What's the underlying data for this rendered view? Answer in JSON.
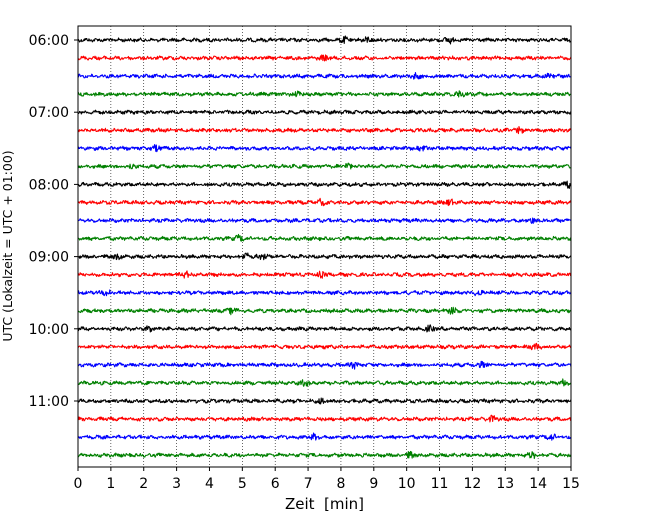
{
  "chart_data": {
    "type": "line",
    "subtype": "helicorder / seismogram drum plot",
    "xlabel": "Zeit  [min]",
    "ylabel": "UTC (Lokalzeit = UTC + 01:00)",
    "xlim": [
      0,
      15
    ],
    "x_ticks": [
      "0",
      "1",
      "2",
      "3",
      "4",
      "5",
      "6",
      "7",
      "8",
      "9",
      "10",
      "11",
      "12",
      "13",
      "14",
      "15"
    ],
    "y_ticks": [
      "06:00",
      "07:00",
      "08:00",
      "09:00",
      "10:00",
      "11:00"
    ],
    "grid": "vertical dotted lines at each minute",
    "trace_interval_minutes": 15,
    "traces_per_hour": 4,
    "trace_colors": [
      "#000000",
      "#ff0000",
      "#0000ff",
      "#008000"
    ],
    "traces": [
      {
        "start": "06:00",
        "color": "#000000",
        "events_min": [
          8.1,
          8.8,
          11.3
        ]
      },
      {
        "start": "06:15",
        "color": "#ff0000",
        "events_min": [
          7.5
        ]
      },
      {
        "start": "06:30",
        "color": "#0000ff",
        "events_min": [
          10.3,
          14.4
        ]
      },
      {
        "start": "06:45",
        "color": "#008000",
        "events_min": [
          6.7,
          11.6
        ]
      },
      {
        "start": "07:00",
        "color": "#000000",
        "events_min": []
      },
      {
        "start": "07:15",
        "color": "#ff0000",
        "events_min": [
          13.4
        ]
      },
      {
        "start": "07:30",
        "color": "#0000ff",
        "events_min": [
          2.4,
          10.5
        ]
      },
      {
        "start": "07:45",
        "color": "#008000",
        "events_min": [
          1.6,
          8.2
        ]
      },
      {
        "start": "08:00",
        "color": "#000000",
        "events_min": [
          14.9
        ]
      },
      {
        "start": "08:15",
        "color": "#ff0000",
        "events_min": [
          7.4,
          11.3
        ]
      },
      {
        "start": "08:30",
        "color": "#0000ff",
        "events_min": [
          13.8
        ]
      },
      {
        "start": "08:45",
        "color": "#008000",
        "events_min": [
          4.9
        ]
      },
      {
        "start": "09:00",
        "color": "#000000",
        "events_min": [
          1.2,
          5.1,
          5.6
        ]
      },
      {
        "start": "09:15",
        "color": "#ff0000",
        "events_min": [
          3.3,
          7.4
        ]
      },
      {
        "start": "09:30",
        "color": "#0000ff",
        "events_min": [
          0.9,
          12.2
        ]
      },
      {
        "start": "09:45",
        "color": "#008000",
        "events_min": [
          4.7,
          11.4
        ]
      },
      {
        "start": "10:00",
        "color": "#000000",
        "events_min": [
          2.2,
          10.7
        ]
      },
      {
        "start": "10:15",
        "color": "#ff0000",
        "events_min": [
          13.9
        ]
      },
      {
        "start": "10:30",
        "color": "#0000ff",
        "events_min": [
          8.4,
          12.3
        ]
      },
      {
        "start": "10:45",
        "color": "#008000",
        "events_min": [
          6.9,
          14.8
        ]
      },
      {
        "start": "11:00",
        "color": "#000000",
        "events_min": [
          7.4
        ]
      },
      {
        "start": "11:15",
        "color": "#ff0000",
        "events_min": [
          12.6
        ]
      },
      {
        "start": "11:30",
        "color": "#0000ff",
        "events_min": [
          7.2,
          14.4
        ]
      },
      {
        "start": "11:45",
        "color": "#008000",
        "events_min": [
          10.1,
          13.8
        ]
      }
    ]
  }
}
